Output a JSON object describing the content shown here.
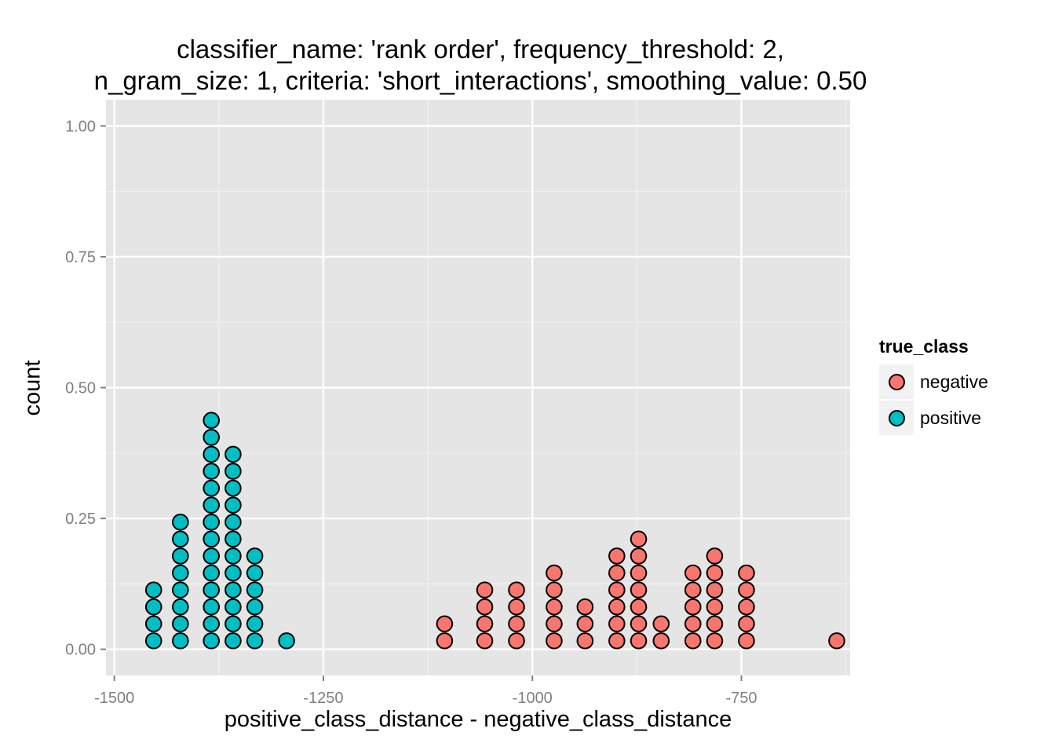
{
  "chart_data": {
    "type": "dotplot",
    "title_lines": [
      "classifier_name: 'rank order', frequency_threshold: 2,",
      "n_gram_size: 1, criteria: 'short_interactions', smoothing_value: 0.50"
    ],
    "xlabel": "positive_class_distance - negative_class_distance",
    "ylabel": "count",
    "xlim": [
      -1510,
      -620
    ],
    "ylim": [
      -0.05,
      1.05
    ],
    "x_ticks": [
      {
        "value": -1500,
        "label": "-1500"
      },
      {
        "value": -1250,
        "label": "-1250"
      },
      {
        "value": -1000,
        "label": "-1000"
      },
      {
        "value": -750,
        "label": "-750"
      }
    ],
    "y_ticks": [
      {
        "value": 0.0,
        "label": "0.00"
      },
      {
        "value": 0.25,
        "label": "0.25"
      },
      {
        "value": 0.5,
        "label": "0.50"
      },
      {
        "value": 0.75,
        "label": "0.75"
      },
      {
        "value": 1.0,
        "label": "1.00"
      }
    ],
    "dot_height": 0.0324,
    "grid": true,
    "legend": {
      "title": "true_class",
      "position": "right",
      "entries": [
        {
          "label": "negative",
          "color": "#F8766D"
        },
        {
          "label": "positive",
          "color": "#00BFC4"
        }
      ]
    },
    "series": [
      {
        "name": "positive",
        "color": "#00BFC4",
        "stacks": [
          {
            "x": -1453,
            "count": 4
          },
          {
            "x": -1421,
            "count": 8
          },
          {
            "x": -1384,
            "count": 14
          },
          {
            "x": -1358,
            "count": 12
          },
          {
            "x": -1332,
            "count": 6
          },
          {
            "x": -1294,
            "count": 1
          }
        ]
      },
      {
        "name": "negative",
        "color": "#F8766D",
        "stacks": [
          {
            "x": -1105,
            "count": 2
          },
          {
            "x": -1057,
            "count": 4
          },
          {
            "x": -1019,
            "count": 4
          },
          {
            "x": -974,
            "count": 5
          },
          {
            "x": -937,
            "count": 3
          },
          {
            "x": -899,
            "count": 6
          },
          {
            "x": -873,
            "count": 7
          },
          {
            "x": -846,
            "count": 2
          },
          {
            "x": -808,
            "count": 5
          },
          {
            "x": -782,
            "count": 6
          },
          {
            "x": -744,
            "count": 5
          },
          {
            "x": -636,
            "count": 1
          }
        ]
      }
    ]
  }
}
